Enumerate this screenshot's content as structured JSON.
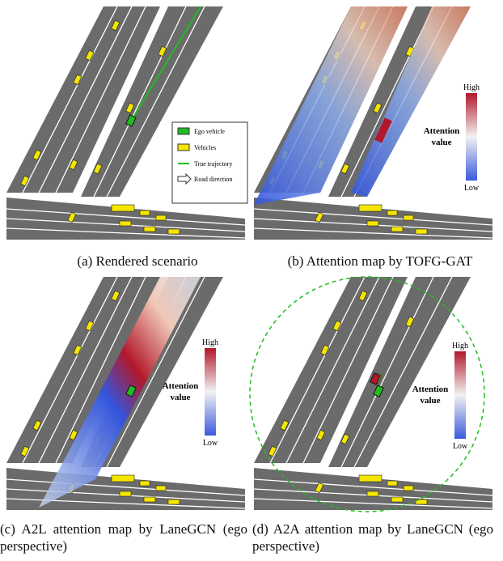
{
  "panels": [
    {
      "caption": "(a) Rendered scenario",
      "legend": [
        "Ego vehicle",
        "Vehicles",
        "True trajectory",
        "Road direction"
      ]
    },
    {
      "caption": "(b) Attention map by TOFG-GAT",
      "colorbar": {
        "high": "High",
        "title": [
          "Attention",
          "value"
        ],
        "low": "Low"
      }
    },
    {
      "caption": "(c) A2L attention map by LaneGCN (ego perspective)",
      "colorbar": {
        "high": "High",
        "title": [
          "Attention",
          "value"
        ],
        "low": "Low"
      }
    },
    {
      "caption": "(d) A2A attention map by LaneGCN (ego perspective)",
      "colorbar": {
        "high": "High",
        "title": [
          "Attention",
          "value"
        ],
        "low": "Low"
      }
    }
  ]
}
